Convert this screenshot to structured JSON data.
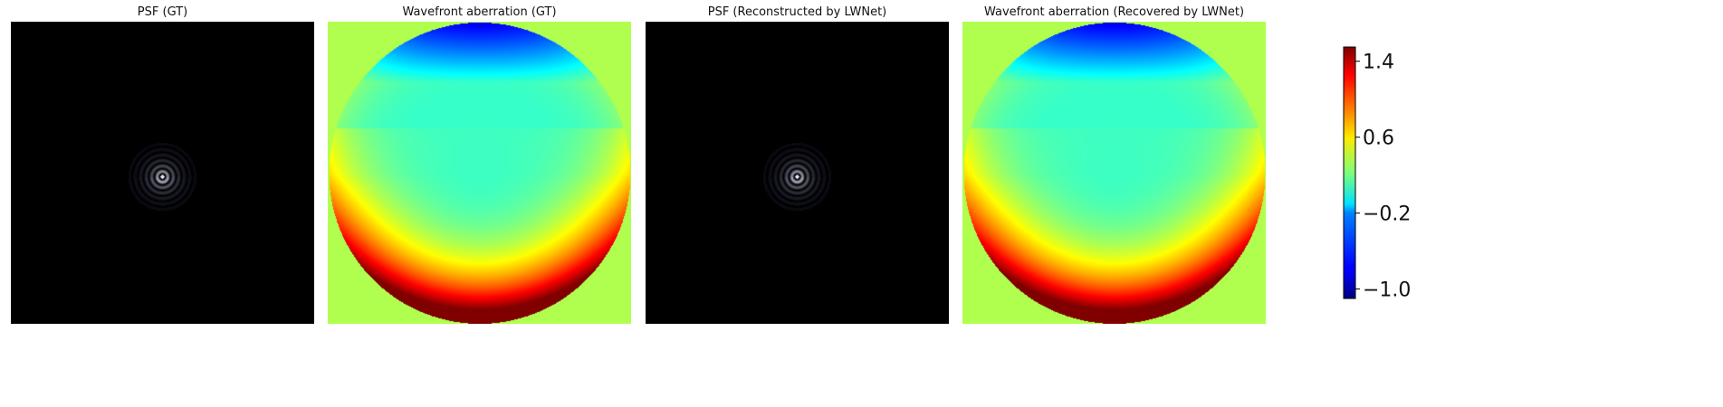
{
  "chart_data": {
    "type": "heatmap",
    "panels": [
      {
        "title": "PSF (GT)",
        "kind": "psf"
      },
      {
        "title": "Wavefront aberration (GT)",
        "kind": "wavefront"
      },
      {
        "title": "PSF (Reconstructed by LWNet)",
        "kind": "psf"
      },
      {
        "title": "Wavefront aberration (Recovered by LWNet)",
        "kind": "wavefront"
      }
    ],
    "colorbar": {
      "colormap": "jet",
      "vmin": -1.1,
      "vmax": 1.55,
      "ticks": [
        -1.0,
        -0.2,
        0.6,
        1.4
      ],
      "tick_labels": [
        "−1.0",
        "−0.2",
        "0.6",
        "1.4"
      ]
    },
    "psf_colormap": "bone",
    "background_value": 0.35
  }
}
